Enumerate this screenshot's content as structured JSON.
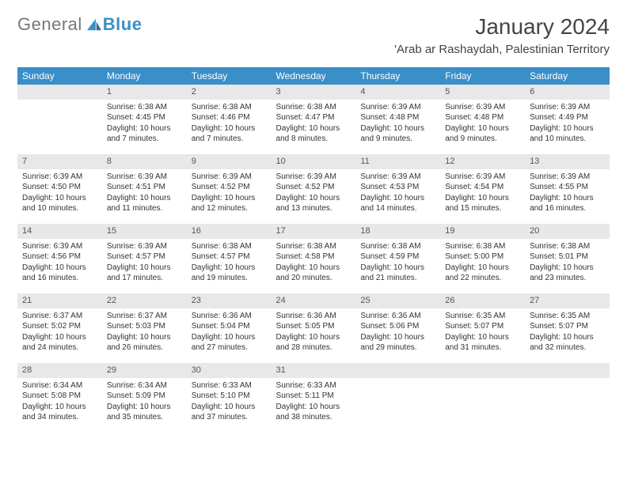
{
  "brand": {
    "part1": "General",
    "part2": "Blue"
  },
  "title": "January 2024",
  "location": "'Arab ar Rashaydah, Palestinian Territory",
  "colors": {
    "header_bg": "#3a8fc8",
    "header_text": "#ffffff",
    "daynum_bg": "#e8e8e8",
    "daynum_text": "#555555",
    "body_text": "#333333",
    "page_bg": "#ffffff"
  },
  "weekdays": [
    "Sunday",
    "Monday",
    "Tuesday",
    "Wednesday",
    "Thursday",
    "Friday",
    "Saturday"
  ],
  "weeks": [
    [
      null,
      {
        "n": "1",
        "sr": "6:38 AM",
        "ss": "4:45 PM",
        "dl": "10 hours and 7 minutes."
      },
      {
        "n": "2",
        "sr": "6:38 AM",
        "ss": "4:46 PM",
        "dl": "10 hours and 7 minutes."
      },
      {
        "n": "3",
        "sr": "6:38 AM",
        "ss": "4:47 PM",
        "dl": "10 hours and 8 minutes."
      },
      {
        "n": "4",
        "sr": "6:39 AM",
        "ss": "4:48 PM",
        "dl": "10 hours and 9 minutes."
      },
      {
        "n": "5",
        "sr": "6:39 AM",
        "ss": "4:48 PM",
        "dl": "10 hours and 9 minutes."
      },
      {
        "n": "6",
        "sr": "6:39 AM",
        "ss": "4:49 PM",
        "dl": "10 hours and 10 minutes."
      }
    ],
    [
      {
        "n": "7",
        "sr": "6:39 AM",
        "ss": "4:50 PM",
        "dl": "10 hours and 10 minutes."
      },
      {
        "n": "8",
        "sr": "6:39 AM",
        "ss": "4:51 PM",
        "dl": "10 hours and 11 minutes."
      },
      {
        "n": "9",
        "sr": "6:39 AM",
        "ss": "4:52 PM",
        "dl": "10 hours and 12 minutes."
      },
      {
        "n": "10",
        "sr": "6:39 AM",
        "ss": "4:52 PM",
        "dl": "10 hours and 13 minutes."
      },
      {
        "n": "11",
        "sr": "6:39 AM",
        "ss": "4:53 PM",
        "dl": "10 hours and 14 minutes."
      },
      {
        "n": "12",
        "sr": "6:39 AM",
        "ss": "4:54 PM",
        "dl": "10 hours and 15 minutes."
      },
      {
        "n": "13",
        "sr": "6:39 AM",
        "ss": "4:55 PM",
        "dl": "10 hours and 16 minutes."
      }
    ],
    [
      {
        "n": "14",
        "sr": "6:39 AM",
        "ss": "4:56 PM",
        "dl": "10 hours and 16 minutes."
      },
      {
        "n": "15",
        "sr": "6:39 AM",
        "ss": "4:57 PM",
        "dl": "10 hours and 17 minutes."
      },
      {
        "n": "16",
        "sr": "6:38 AM",
        "ss": "4:57 PM",
        "dl": "10 hours and 19 minutes."
      },
      {
        "n": "17",
        "sr": "6:38 AM",
        "ss": "4:58 PM",
        "dl": "10 hours and 20 minutes."
      },
      {
        "n": "18",
        "sr": "6:38 AM",
        "ss": "4:59 PM",
        "dl": "10 hours and 21 minutes."
      },
      {
        "n": "19",
        "sr": "6:38 AM",
        "ss": "5:00 PM",
        "dl": "10 hours and 22 minutes."
      },
      {
        "n": "20",
        "sr": "6:38 AM",
        "ss": "5:01 PM",
        "dl": "10 hours and 23 minutes."
      }
    ],
    [
      {
        "n": "21",
        "sr": "6:37 AM",
        "ss": "5:02 PM",
        "dl": "10 hours and 24 minutes."
      },
      {
        "n": "22",
        "sr": "6:37 AM",
        "ss": "5:03 PM",
        "dl": "10 hours and 26 minutes."
      },
      {
        "n": "23",
        "sr": "6:36 AM",
        "ss": "5:04 PM",
        "dl": "10 hours and 27 minutes."
      },
      {
        "n": "24",
        "sr": "6:36 AM",
        "ss": "5:05 PM",
        "dl": "10 hours and 28 minutes."
      },
      {
        "n": "25",
        "sr": "6:36 AM",
        "ss": "5:06 PM",
        "dl": "10 hours and 29 minutes."
      },
      {
        "n": "26",
        "sr": "6:35 AM",
        "ss": "5:07 PM",
        "dl": "10 hours and 31 minutes."
      },
      {
        "n": "27",
        "sr": "6:35 AM",
        "ss": "5:07 PM",
        "dl": "10 hours and 32 minutes."
      }
    ],
    [
      {
        "n": "28",
        "sr": "6:34 AM",
        "ss": "5:08 PM",
        "dl": "10 hours and 34 minutes."
      },
      {
        "n": "29",
        "sr": "6:34 AM",
        "ss": "5:09 PM",
        "dl": "10 hours and 35 minutes."
      },
      {
        "n": "30",
        "sr": "6:33 AM",
        "ss": "5:10 PM",
        "dl": "10 hours and 37 minutes."
      },
      {
        "n": "31",
        "sr": "6:33 AM",
        "ss": "5:11 PM",
        "dl": "10 hours and 38 minutes."
      },
      null,
      null,
      null
    ]
  ],
  "labels": {
    "sunrise": "Sunrise:",
    "sunset": "Sunset:",
    "daylight": "Daylight:"
  }
}
